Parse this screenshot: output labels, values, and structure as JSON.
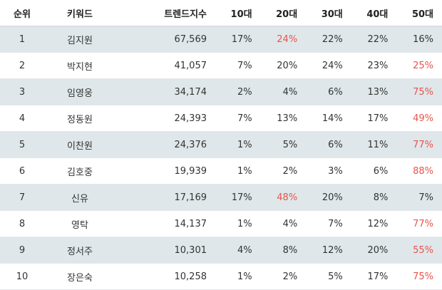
{
  "headers": {
    "rank": "순위",
    "keyword": "키워드",
    "trend": "트렌드지수",
    "age10": "10대",
    "age20": "20대",
    "age30": "30대",
    "age40": "40대",
    "age50": "50대"
  },
  "highlight_color": "#e8544e",
  "rows": [
    {
      "rank": "1",
      "keyword": "김지원",
      "trend": "67,569",
      "a10": "17%",
      "a20": "24%",
      "a30": "22%",
      "a40": "22%",
      "a50": "16%",
      "max": "a20"
    },
    {
      "rank": "2",
      "keyword": "박지현",
      "trend": "41,057",
      "a10": "7%",
      "a20": "20%",
      "a30": "24%",
      "a40": "23%",
      "a50": "25%",
      "max": "a50"
    },
    {
      "rank": "3",
      "keyword": "임영웅",
      "trend": "34,174",
      "a10": "2%",
      "a20": "4%",
      "a30": "6%",
      "a40": "13%",
      "a50": "75%",
      "max": "a50"
    },
    {
      "rank": "4",
      "keyword": "정동원",
      "trend": "24,393",
      "a10": "7%",
      "a20": "13%",
      "a30": "14%",
      "a40": "17%",
      "a50": "49%",
      "max": "a50"
    },
    {
      "rank": "5",
      "keyword": "이찬원",
      "trend": "24,376",
      "a10": "1%",
      "a20": "5%",
      "a30": "6%",
      "a40": "11%",
      "a50": "77%",
      "max": "a50"
    },
    {
      "rank": "6",
      "keyword": "김호중",
      "trend": "19,939",
      "a10": "1%",
      "a20": "2%",
      "a30": "3%",
      "a40": "6%",
      "a50": "88%",
      "max": "a50"
    },
    {
      "rank": "7",
      "keyword": "신유",
      "trend": "17,169",
      "a10": "17%",
      "a20": "48%",
      "a30": "20%",
      "a40": "8%",
      "a50": "7%",
      "max": "a20"
    },
    {
      "rank": "8",
      "keyword": "영탁",
      "trend": "14,137",
      "a10": "1%",
      "a20": "4%",
      "a30": "7%",
      "a40": "12%",
      "a50": "77%",
      "max": "a50"
    },
    {
      "rank": "9",
      "keyword": "정서주",
      "trend": "10,301",
      "a10": "4%",
      "a20": "8%",
      "a30": "12%",
      "a40": "20%",
      "a50": "55%",
      "max": "a50"
    },
    {
      "rank": "10",
      "keyword": "장은숙",
      "trend": "10,258",
      "a10": "1%",
      "a20": "2%",
      "a30": "5%",
      "a40": "17%",
      "a50": "75%",
      "max": "a50"
    }
  ]
}
